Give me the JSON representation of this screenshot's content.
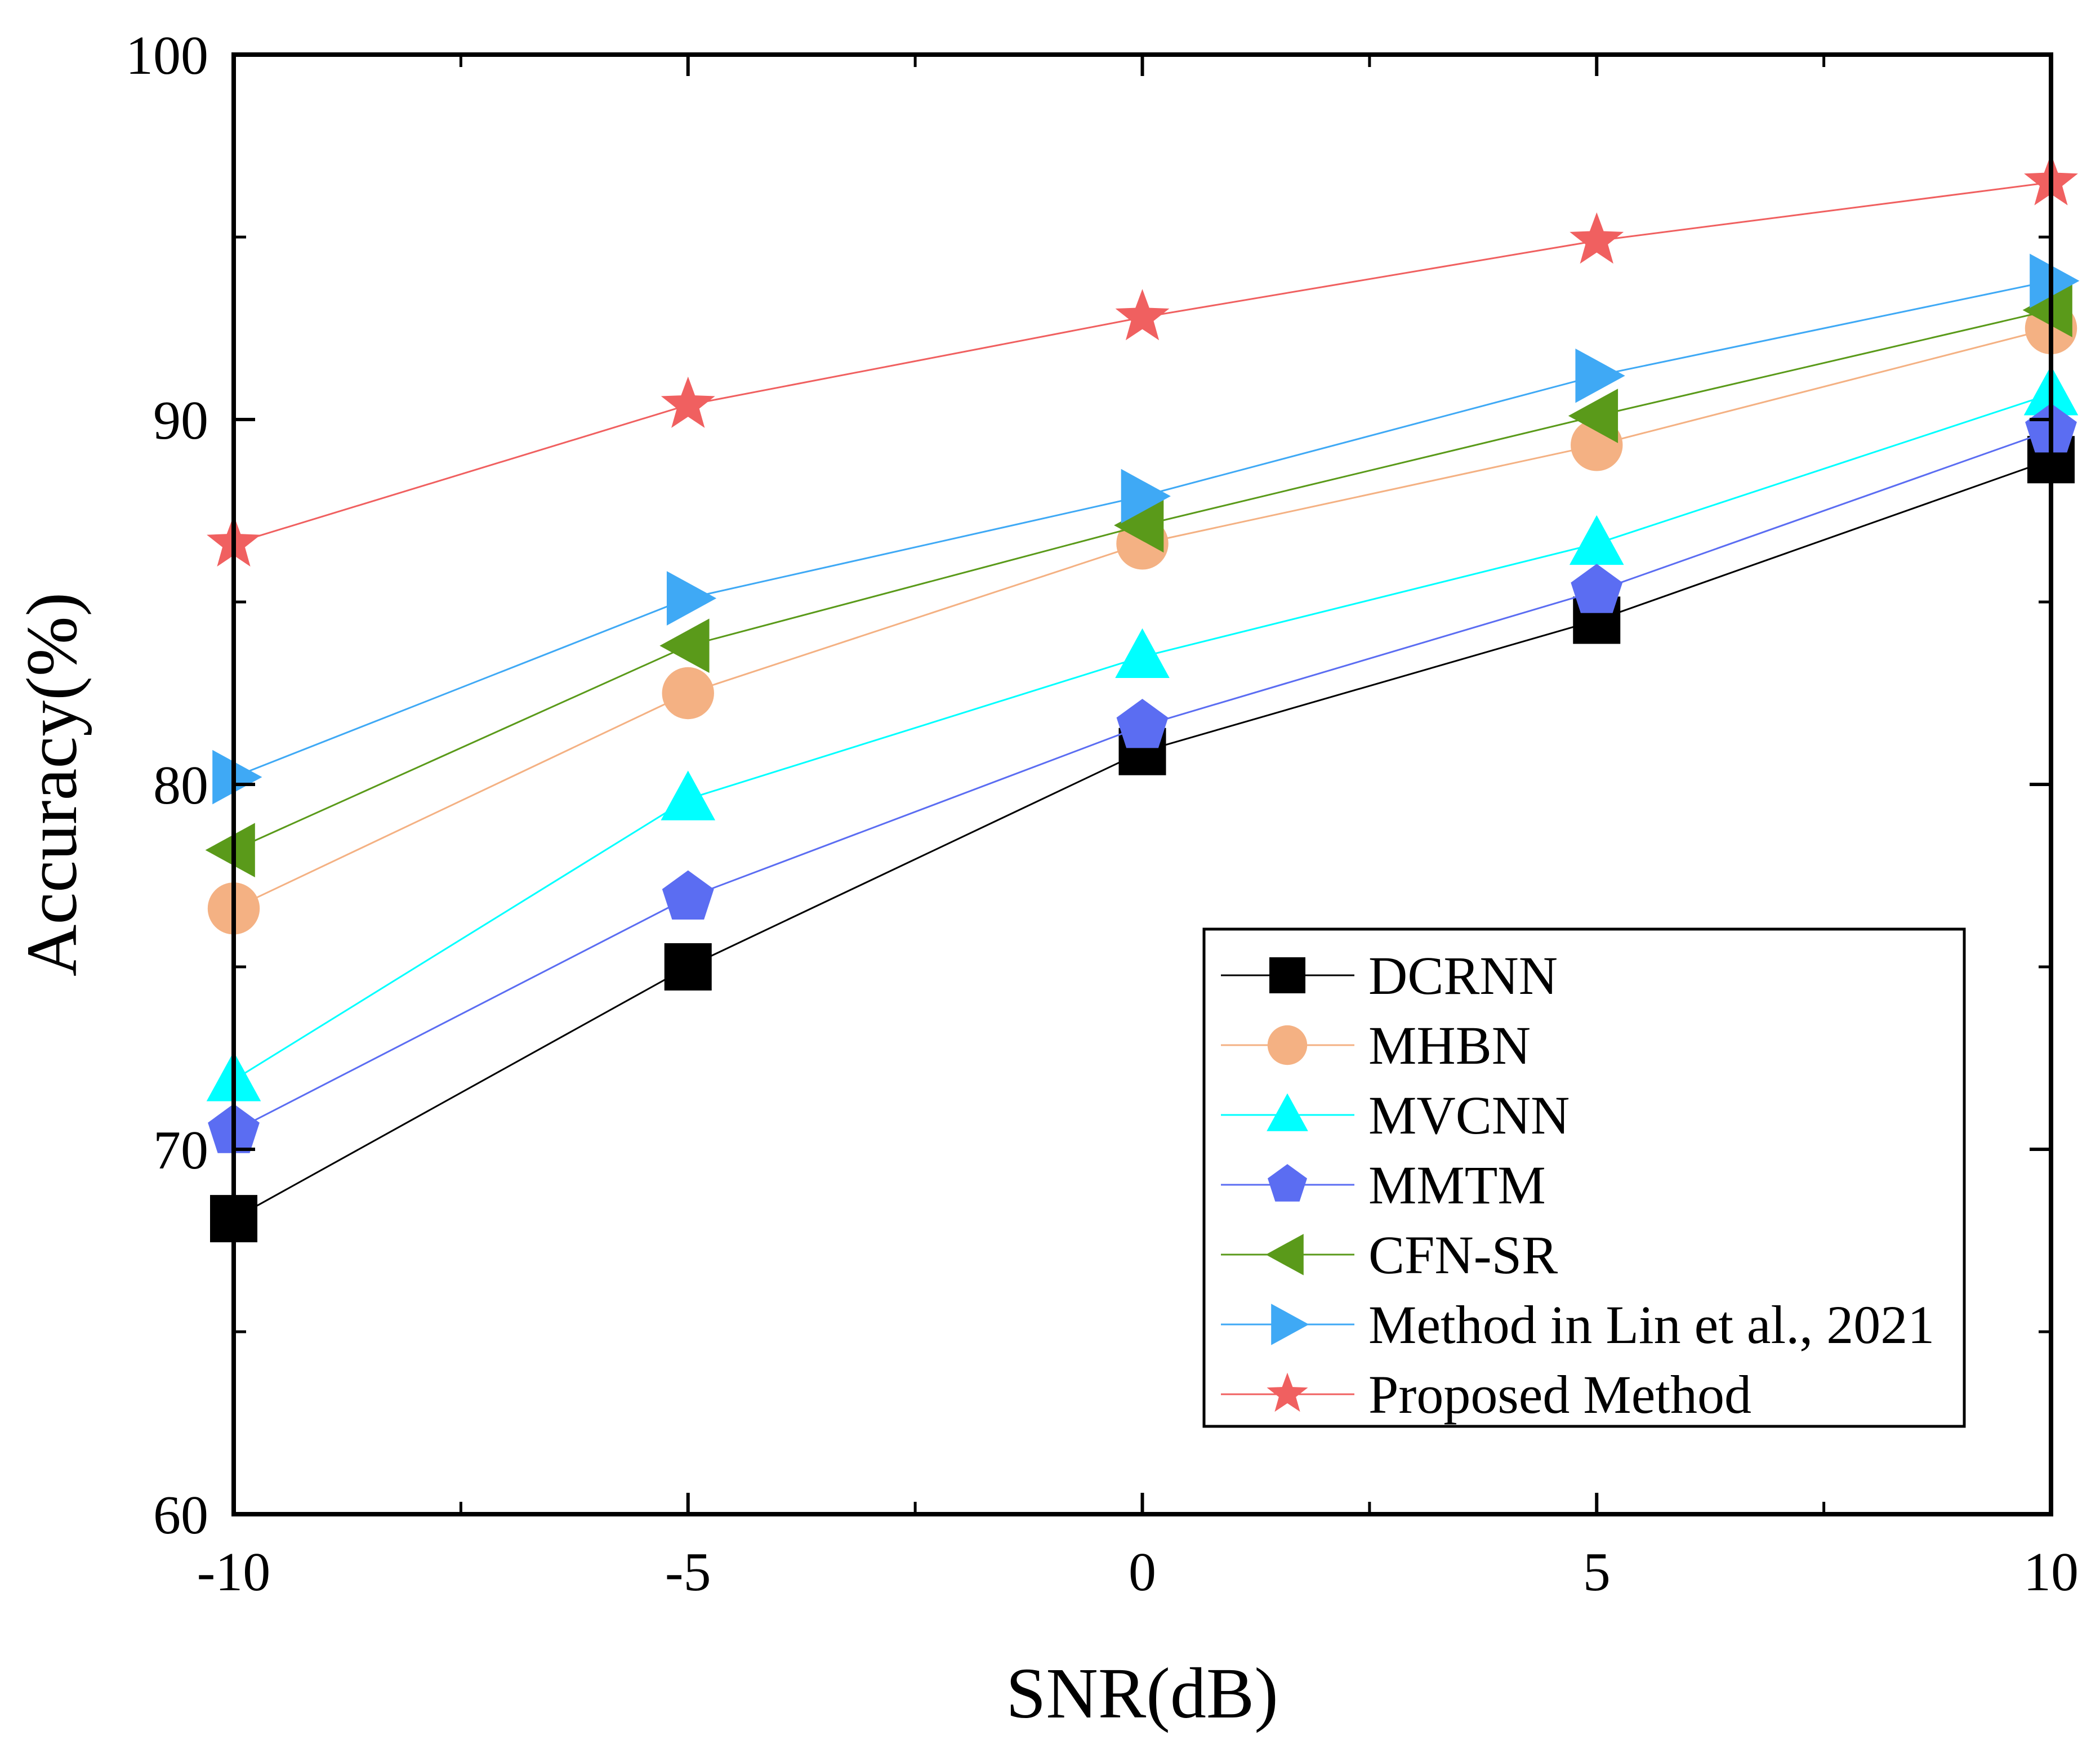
{
  "chart_data": {
    "type": "line",
    "title": "",
    "xlabel": "SNR(dB)",
    "ylabel": "Accuracy(%)",
    "x": [
      -10,
      -5,
      0,
      5,
      10
    ],
    "xlim": [
      -10,
      10
    ],
    "ylim": [
      60,
      100
    ],
    "xticks": [
      -10,
      -5,
      0,
      5,
      10
    ],
    "xtick_labels": [
      "-10",
      "-5",
      "0",
      "5",
      "10"
    ],
    "yticks": [
      60,
      70,
      80,
      90,
      100
    ],
    "ytick_labels": [
      "60",
      "70",
      "80",
      "90",
      "100"
    ],
    "grid": false,
    "legend_position": "bottom-right",
    "series": [
      {
        "name": "DCRNN",
        "marker": "square",
        "color": "#000000",
        "values": [
          68.1,
          75.0,
          80.9,
          84.5,
          88.9
        ]
      },
      {
        "name": "MHBN",
        "marker": "circle",
        "color": "#F4B183",
        "values": [
          76.6,
          82.5,
          86.6,
          89.3,
          92.5
        ]
      },
      {
        "name": "MVCNN",
        "marker": "triangle-up",
        "color": "#00FFFF",
        "values": [
          71.9,
          79.6,
          83.5,
          86.6,
          90.7
        ]
      },
      {
        "name": "MMTM",
        "marker": "pentagon",
        "color": "#5B6DF2",
        "values": [
          70.5,
          76.9,
          81.6,
          85.3,
          89.7
        ]
      },
      {
        "name": "CFN-SR",
        "marker": "triangle-left",
        "color": "#5A9A1A",
        "values": [
          78.2,
          83.8,
          87.1,
          90.1,
          93.0
        ]
      },
      {
        "name": "Method in Lin et al., 2021",
        "marker": "triangle-right",
        "color": "#3FA9F5",
        "values": [
          80.2,
          85.1,
          87.9,
          91.2,
          93.8
        ]
      },
      {
        "name": "Proposed Method",
        "marker": "star",
        "color": "#F06060",
        "values": [
          86.6,
          90.4,
          92.8,
          94.9,
          96.5
        ]
      }
    ]
  }
}
